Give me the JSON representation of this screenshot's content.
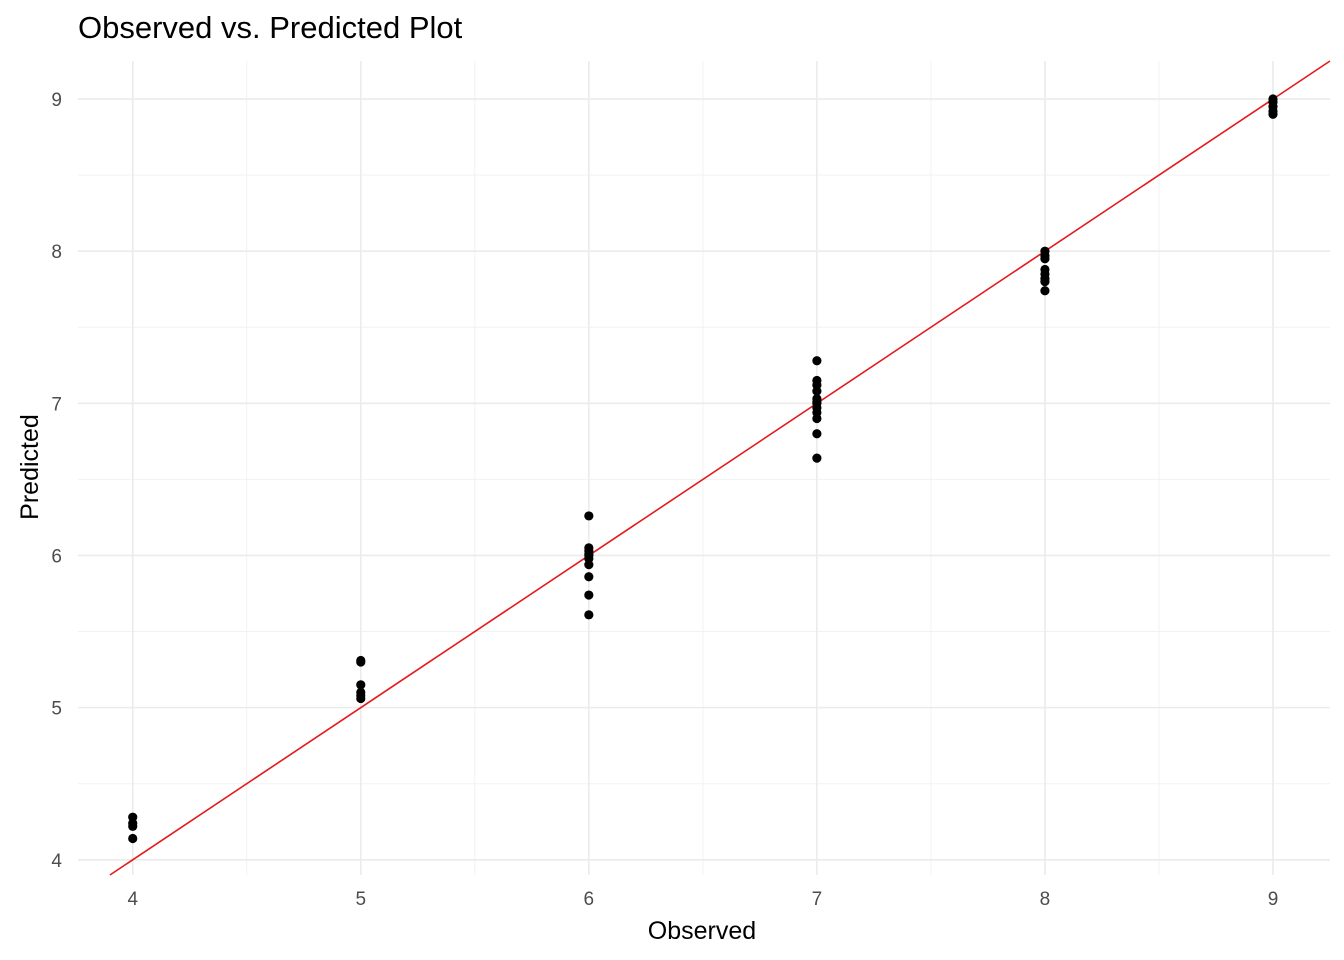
{
  "chart_data": {
    "type": "scatter",
    "title": "Observed vs. Predicted Plot",
    "xlabel": "Observed",
    "ylabel": "Predicted",
    "xlim": [
      3.76,
      9.25
    ],
    "ylim": [
      3.9,
      9.25
    ],
    "x_ticks": [
      4,
      5,
      6,
      7,
      8,
      9
    ],
    "y_ticks": [
      4,
      5,
      6,
      7,
      8,
      9
    ],
    "x_tick_labels": [
      "4",
      "5",
      "6",
      "7",
      "8",
      "9"
    ],
    "y_tick_labels": [
      "4",
      "5",
      "6",
      "7",
      "8",
      "9"
    ],
    "grid": true,
    "reference_line": {
      "slope": 1,
      "intercept": 0,
      "color": "#e41a1c"
    },
    "point_color": "#000000",
    "series": [
      {
        "x": [
          4,
          4,
          4,
          4,
          5,
          5,
          5,
          5,
          5,
          5,
          6,
          6,
          6,
          6,
          6,
          6,
          6,
          6,
          6,
          6,
          7,
          7,
          7,
          7,
          7,
          7,
          7,
          7,
          7,
          7,
          7,
          7,
          8,
          8,
          8,
          8,
          8,
          8,
          8,
          8,
          9,
          9,
          9,
          9,
          9
        ],
        "y": [
          4.28,
          4.24,
          4.22,
          4.14,
          5.31,
          5.3,
          5.15,
          5.1,
          5.08,
          5.06,
          6.26,
          6.05,
          6.03,
          6.01,
          5.98,
          5.94,
          5.86,
          5.74,
          5.61,
          6.0,
          7.28,
          7.15,
          7.12,
          7.08,
          7.03,
          7.0,
          6.97,
          6.94,
          6.9,
          6.8,
          6.64,
          7.01,
          8.0,
          7.97,
          7.95,
          7.88,
          7.85,
          7.82,
          7.8,
          7.74,
          9.0,
          8.98,
          8.95,
          8.92,
          8.9
        ]
      }
    ]
  }
}
